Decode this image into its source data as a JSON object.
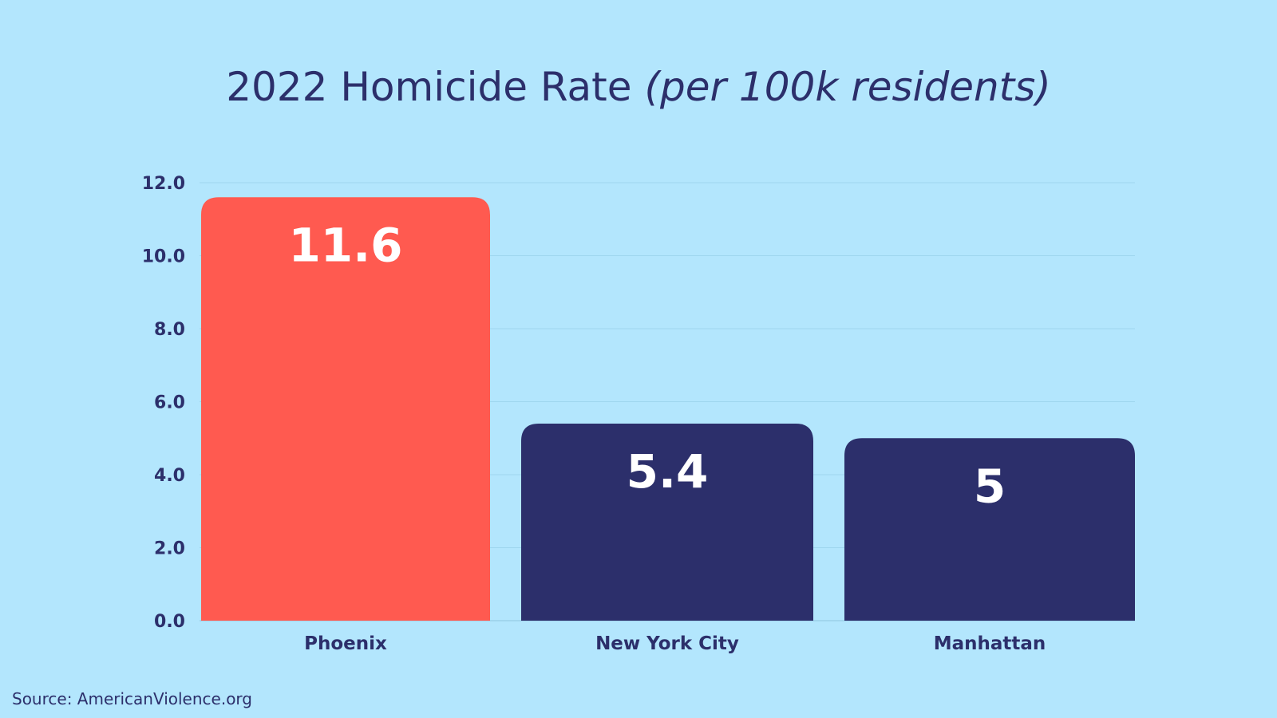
{
  "chart_data": {
    "type": "bar",
    "title": "2022 Homicide Rate",
    "title_suffix": "(per 100k residents)",
    "categories": [
      "Phoenix",
      "New York City",
      "Manhattan"
    ],
    "values": [
      11.6,
      5.4,
      5
    ],
    "data_labels": [
      "11.6",
      "5.4",
      "5"
    ],
    "bar_colors": [
      "#ff5a50",
      "#2c2f6b",
      "#2c2f6b"
    ],
    "ylim": [
      0,
      12
    ],
    "yticks": [
      "0.0",
      "2.0",
      "4.0",
      "6.0",
      "8.0",
      "10.0",
      "12.0"
    ],
    "grid": true,
    "xlabel": "",
    "ylabel": ""
  },
  "source": "Source: AmericanViolence.org",
  "colors": {
    "background": "#b3e6fd",
    "text": "#2c2f6b"
  }
}
